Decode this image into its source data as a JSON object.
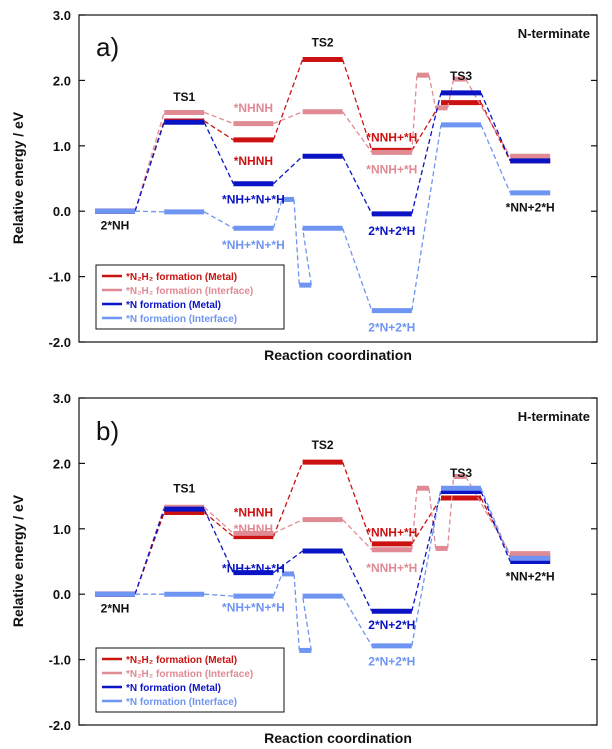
{
  "colors": {
    "metal_n2h2": "#cc1111",
    "interface_n2h2": "#e08a94",
    "metal_n": "#0a14c4",
    "interface_n": "#6f95f2"
  },
  "chart_data": [
    {
      "type": "line",
      "panel_label": "a)",
      "terminate_label": "N-terminate",
      "xlabel": "Reaction coordination",
      "ylabel": "Relative energy / eV",
      "ylim": [
        -2.0,
        3.0
      ],
      "yticks": [
        3.0,
        2.0,
        1.0,
        0.0,
        -1.0,
        -2.0
      ],
      "ytick_labels": [
        "3.0",
        "2.0",
        "1.0",
        "0.0",
        "-1.0",
        "-2.0"
      ],
      "legend": [
        {
          "series": "*N₂H₂ formation (Metal)",
          "color_key": "metal_n2h2"
        },
        {
          "series": "*N₂H₂ formation (Interface)",
          "color_key": "interface_n2h2"
        },
        {
          "series": "*N formation (Metal)",
          "color_key": "metal_n"
        },
        {
          "series": "*N formation (Interface)",
          "color_key": "interface_n"
        }
      ],
      "series": [
        {
          "color_key": "metal_n2h2",
          "levels": [
            [
              1.0,
              0.0
            ],
            [
              2.0,
              1.38
            ],
            [
              3.0,
              1.09
            ],
            [
              4.0,
              2.32
            ],
            [
              5.0,
              0.93
            ],
            [
              6.0,
              1.66
            ],
            [
              7.0,
              0.77
            ]
          ]
        },
        {
          "color_key": "interface_n2h2",
          "levels": [
            [
              1.0,
              0.0
            ],
            [
              2.0,
              1.51
            ],
            [
              3.0,
              1.34
            ],
            [
              4.0,
              1.52
            ],
            [
              5.0,
              0.9
            ],
            [
              5.45,
              2.08
            ],
            [
              5.72,
              1.58
            ],
            [
              5.98,
              2.02
            ],
            [
              7.0,
              0.84
            ]
          ]
        },
        {
          "color_key": "metal_n",
          "levels": [
            [
              1.0,
              0.0
            ],
            [
              2.0,
              1.36
            ],
            [
              3.0,
              0.42
            ],
            [
              4.0,
              0.84
            ],
            [
              5.0,
              -0.04
            ],
            [
              6.0,
              1.81
            ],
            [
              7.0,
              0.77
            ]
          ]
        },
        {
          "color_key": "interface_n",
          "levels": [
            [
              1.0,
              0.0
            ],
            [
              2.0,
              -0.01
            ],
            [
              3.0,
              -0.26
            ],
            [
              3.5,
              0.18
            ],
            [
              3.75,
              -1.13
            ],
            [
              4.0,
              -0.26
            ],
            [
              5.0,
              -1.52
            ],
            [
              6.0,
              1.32
            ],
            [
              7.0,
              0.28
            ]
          ]
        }
      ],
      "labels": [
        {
          "text": "2*NH",
          "x": 1.0,
          "y": -0.22,
          "color_key": ""
        },
        {
          "text": "TS1",
          "x": 2.0,
          "y": 1.75,
          "color_key": ""
        },
        {
          "text": "*NHNH",
          "x": 3.0,
          "y": 1.58,
          "color_key": "interface_n2h2"
        },
        {
          "text": "*NHNH",
          "x": 3.0,
          "y": 0.77,
          "color_key": "metal_n2h2"
        },
        {
          "text": "*NH+*N+*H",
          "x": 3.0,
          "y": 0.18,
          "color_key": "metal_n"
        },
        {
          "text": "*NH+*N+*H",
          "x": 3.0,
          "y": -0.52,
          "color_key": "interface_n"
        },
        {
          "text": "TS2",
          "x": 4.0,
          "y": 2.58,
          "color_key": ""
        },
        {
          "text": "*NNH+*H",
          "x": 5.0,
          "y": 1.13,
          "color_key": "metal_n2h2"
        },
        {
          "text": "*NNH+*H",
          "x": 5.0,
          "y": 0.64,
          "color_key": "interface_n2h2"
        },
        {
          "text": "2*N+2*H",
          "x": 5.0,
          "y": -0.3,
          "color_key": "metal_n"
        },
        {
          "text": "2*N+2*H",
          "x": 5.0,
          "y": -1.78,
          "color_key": "interface_n"
        },
        {
          "text": "TS3",
          "x": 6.0,
          "y": 2.07,
          "color_key": ""
        },
        {
          "text": "*NN+2*H",
          "x": 7.0,
          "y": 0.06,
          "color_key": ""
        }
      ]
    },
    {
      "type": "line",
      "panel_label": "b)",
      "terminate_label": "H-terminate",
      "xlabel": "Reaction coordination",
      "ylabel": "Relative energy / eV",
      "ylim": [
        -2.0,
        3.0
      ],
      "yticks": [
        3.0,
        2.0,
        1.0,
        0.0,
        -1.0,
        -2.0
      ],
      "ytick_labels": [
        "3.0",
        "2.0",
        "1.0",
        "0.0",
        "-1.0",
        "-2.0"
      ],
      "legend": [
        {
          "series": "*N₂H₂ formation (Metal)",
          "color_key": "metal_n2h2"
        },
        {
          "series": "*N₂H₂ formation (Interface)",
          "color_key": "interface_n2h2"
        },
        {
          "series": "*N formation (Metal)",
          "color_key": "metal_n"
        },
        {
          "series": "*N formation (Interface)",
          "color_key": "interface_n"
        }
      ],
      "series": [
        {
          "color_key": "metal_n2h2",
          "levels": [
            [
              1.0,
              0.0
            ],
            [
              2.0,
              1.25
            ],
            [
              3.0,
              0.88
            ],
            [
              4.0,
              2.02
            ],
            [
              5.0,
              0.77
            ],
            [
              6.0,
              1.47
            ],
            [
              7.0,
              0.58
            ]
          ]
        },
        {
          "color_key": "interface_n2h2",
          "levels": [
            [
              1.0,
              0.0
            ],
            [
              2.0,
              1.33
            ],
            [
              3.0,
              0.93
            ],
            [
              4.0,
              1.14
            ],
            [
              5.0,
              0.68
            ],
            [
              5.45,
              1.62
            ],
            [
              5.72,
              0.7
            ],
            [
              5.98,
              1.8
            ],
            [
              7.0,
              0.62
            ]
          ]
        },
        {
          "color_key": "metal_n",
          "levels": [
            [
              1.0,
              0.0
            ],
            [
              2.0,
              1.3
            ],
            [
              3.0,
              0.33
            ],
            [
              4.0,
              0.66
            ],
            [
              5.0,
              -0.26
            ],
            [
              6.0,
              1.57
            ],
            [
              7.0,
              0.5
            ]
          ]
        },
        {
          "color_key": "interface_n",
          "levels": [
            [
              1.0,
              0.0
            ],
            [
              2.0,
              0.0
            ],
            [
              3.0,
              -0.03
            ],
            [
              3.5,
              0.31
            ],
            [
              3.75,
              -0.86
            ],
            [
              4.0,
              -0.03
            ],
            [
              5.0,
              -0.79
            ],
            [
              6.0,
              1.62
            ],
            [
              7.0,
              0.55
            ]
          ]
        }
      ],
      "labels": [
        {
          "text": "2*NH",
          "x": 1.0,
          "y": -0.22,
          "color_key": ""
        },
        {
          "text": "TS1",
          "x": 2.0,
          "y": 1.62,
          "color_key": ""
        },
        {
          "text": "*NHNH",
          "x": 3.0,
          "y": 1.25,
          "color_key": "metal_n2h2"
        },
        {
          "text": "*NHNH",
          "x": 3.0,
          "y": 1.0,
          "color_key": "interface_n2h2"
        },
        {
          "text": "*NH+*N+*H",
          "x": 3.0,
          "y": 0.39,
          "color_key": "metal_n"
        },
        {
          "text": "*NH+*N+*H",
          "x": 3.0,
          "y": -0.2,
          "color_key": "interface_n"
        },
        {
          "text": "TS2",
          "x": 4.0,
          "y": 2.28,
          "color_key": ""
        },
        {
          "text": "*NNH+*H",
          "x": 5.0,
          "y": 0.94,
          "color_key": "metal_n2h2"
        },
        {
          "text": "*NNH+*H",
          "x": 5.0,
          "y": 0.4,
          "color_key": "interface_n2h2"
        },
        {
          "text": "2*N+2*H",
          "x": 5.0,
          "y": -0.47,
          "color_key": "metal_n"
        },
        {
          "text": "2*N+2*H",
          "x": 5.0,
          "y": -1.03,
          "color_key": "interface_n"
        },
        {
          "text": "TS3",
          "x": 6.0,
          "y": 1.85,
          "color_key": ""
        },
        {
          "text": "*NN+2*H",
          "x": 7.0,
          "y": 0.27,
          "color_key": ""
        }
      ]
    }
  ]
}
